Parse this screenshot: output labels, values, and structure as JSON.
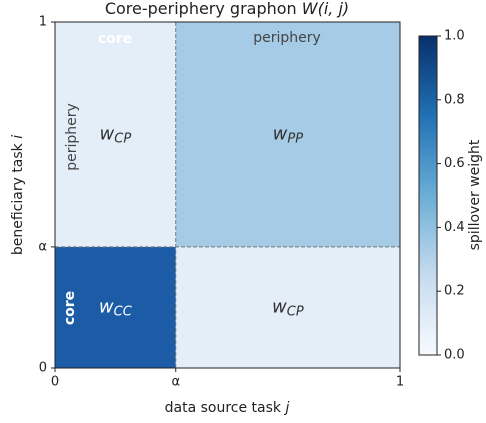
{
  "chart_data": {
    "type": "heatmap",
    "title": "Core-periphery graphon ",
    "title_var": "W(i, j)",
    "x_label": "data source task ",
    "x_label_var": "j",
    "y_label": "beneficiary task ",
    "y_label_var": "i",
    "xlim": [
      0,
      1
    ],
    "ylim": [
      0,
      1
    ],
    "xticks": [
      0,
      {
        "value": 0.35,
        "label": "α"
      },
      1
    ],
    "yticks": [
      0,
      {
        "value": 0.35,
        "label": "α"
      },
      1
    ],
    "cells": [
      {
        "x": [
          0,
          0.35
        ],
        "y": [
          0,
          0.35
        ],
        "value": 0.8,
        "color": "#1c5ca6",
        "label": "w",
        "label_sub": "CC"
      },
      {
        "x": [
          0.35,
          1
        ],
        "y": [
          0,
          0.35
        ],
        "value": 0.1,
        "color": "#e3eef8",
        "label": "w",
        "label_sub": "CP"
      },
      {
        "x": [
          0,
          0.35
        ],
        "y": [
          0.35,
          1
        ],
        "value": 0.1,
        "color": "#e3eef8",
        "label": "w",
        "label_sub": "CP"
      },
      {
        "x": [
          0.35,
          1
        ],
        "y": [
          0.35,
          1
        ],
        "value": 0.35,
        "color": "#a6cbe6",
        "label": "w",
        "label_sub": "PP"
      }
    ],
    "region_labels": [
      "core",
      "periphery",
      "periphery",
      "core"
    ],
    "colorbar": {
      "label": "spillover weight",
      "lim": [
        0,
        1
      ],
      "colors": [
        "#f7fbff",
        "#c6dbef",
        "#6baed6",
        "#2171b5",
        "#08306b"
      ],
      "ticks": [
        {
          "value": 0,
          "label": "0.0"
        },
        {
          "value": 0.2,
          "label": "0.2"
        },
        {
          "value": 0.4,
          "label": "0.4"
        },
        {
          "value": 0.6,
          "label": "0.6"
        },
        {
          "value": 0.8,
          "label": "0.8"
        },
        {
          "value": 1,
          "label": "1.0"
        }
      ]
    }
  }
}
